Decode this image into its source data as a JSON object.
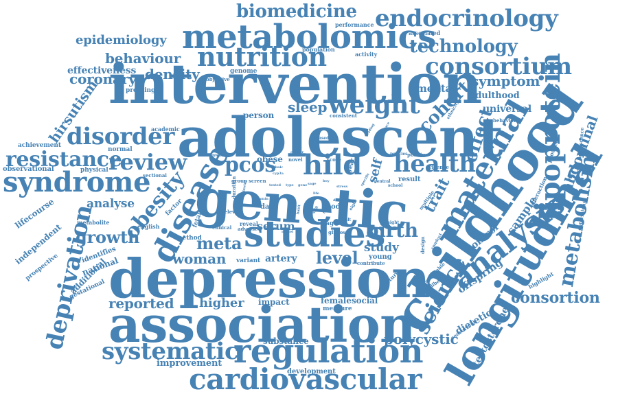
{
  "color": "#4682b4",
  "words": [
    {
      "text": "genetic",
      "weight": 100
    },
    {
      "text": "adolescent",
      "weight": 95
    },
    {
      "text": "intervention",
      "weight": 93
    },
    {
      "text": "childhood",
      "weight": 90
    },
    {
      "text": "depression",
      "weight": 92
    },
    {
      "text": "association",
      "weight": 88
    },
    {
      "text": "longitudinal",
      "weight": 75
    },
    {
      "text": "metabolomics",
      "weight": 62
    },
    {
      "text": "studies",
      "weight": 60
    },
    {
      "text": "regulation",
      "weight": 56
    },
    {
      "text": "cardiovascular",
      "weight": 52
    },
    {
      "text": "disease",
      "weight": 58
    },
    {
      "text": "analysis",
      "weight": 54
    },
    {
      "text": "maternal",
      "weight": 55
    },
    {
      "text": "lipoprotein",
      "weight": 50
    },
    {
      "text": "syndrome",
      "weight": 50
    },
    {
      "text": "endocrinology",
      "weight": 45
    },
    {
      "text": "nutrition",
      "weight": 45
    },
    {
      "text": "consortium",
      "weight": 42
    },
    {
      "text": "weight",
      "weight": 42
    },
    {
      "text": "disorder",
      "weight": 40
    },
    {
      "text": "deprivation",
      "weight": 38
    },
    {
      "text": "systematic",
      "weight": 38
    },
    {
      "text": "health",
      "weight": 38
    },
    {
      "text": "science",
      "weight": 36
    },
    {
      "text": "hild",
      "weight": 40
    },
    {
      "text": "resistance",
      "weight": 34
    },
    {
      "text": "review",
      "weight": 34
    },
    {
      "text": "obesity",
      "weight": 34
    },
    {
      "text": "metabolism",
      "weight": 32
    },
    {
      "text": "technology",
      "weight": 28
    },
    {
      "text": "biomedicine",
      "weight": 28
    },
    {
      "text": "effect",
      "weight": 30
    },
    {
      "text": "cohort",
      "weight": 28
    },
    {
      "text": "birth",
      "weight": 28
    },
    {
      "text": "pcos",
      "weight": 30
    },
    {
      "text": "growth",
      "weight": 24
    },
    {
      "text": "meta",
      "weight": 24
    },
    {
      "text": "level",
      "weight": 24
    },
    {
      "text": "woman",
      "weight": 22
    },
    {
      "text": "consortion",
      "weight": 22
    },
    {
      "text": "polycystic",
      "weight": 20
    },
    {
      "text": "reported",
      "weight": 20
    },
    {
      "text": "higher",
      "weight": 20
    },
    {
      "text": "trait",
      "weight": 22
    },
    {
      "text": "abdominal",
      "weight": 20
    },
    {
      "text": "sleep",
      "weight": 20
    },
    {
      "text": "coronary",
      "weight": 20
    },
    {
      "text": "density",
      "weight": 20
    },
    {
      "text": "behaviour",
      "weight": 20
    },
    {
      "text": "symptom",
      "weight": 20
    },
    {
      "text": "hirsutism",
      "weight": 20
    },
    {
      "text": "epidemiology",
      "weight": 18
    },
    {
      "text": "effectiveness",
      "weight": 16
    },
    {
      "text": "analyse",
      "weight": 18
    },
    {
      "text": "sample",
      "weight": 18
    },
    {
      "text": "study",
      "weight": 18
    },
    {
      "text": "testosterone",
      "weight": 16
    },
    {
      "text": "offspring",
      "weight": 16
    },
    {
      "text": "dietetic",
      "weight": 16
    },
    {
      "text": "control",
      "weight": 16
    },
    {
      "text": "serum",
      "weight": 16
    },
    {
      "text": "artery",
      "weight": 14
    },
    {
      "text": "mental",
      "weight": 16
    },
    {
      "text": "adulthood",
      "weight": 14
    },
    {
      "text": "universal",
      "weight": 14
    },
    {
      "text": "self",
      "weight": 18
    },
    {
      "text": "improvement",
      "weight": 14
    },
    {
      "text": "substance",
      "weight": 12
    },
    {
      "text": "development",
      "weight": 11
    },
    {
      "text": "impact",
      "weight": 12
    },
    {
      "text": "female",
      "weight": 12
    },
    {
      "text": "social",
      "weight": 12
    },
    {
      "text": "measure",
      "weight": 10
    },
    {
      "text": "obese",
      "weight": 12
    },
    {
      "text": "person",
      "weight": 12
    },
    {
      "text": "lifecourse",
      "weight": 12
    },
    {
      "text": "independent",
      "weight": 12
    },
    {
      "text": "national",
      "weight": 12
    },
    {
      "text": "additional",
      "weight": 12
    },
    {
      "text": "identifies",
      "weight": 10
    },
    {
      "text": "prospective",
      "weight": 10
    },
    {
      "text": "gestational",
      "weight": 9
    },
    {
      "text": "observational",
      "weight": 10
    },
    {
      "text": "achievement",
      "weight": 9
    },
    {
      "text": "physical",
      "weight": 9
    },
    {
      "text": "normal",
      "weight": 9
    },
    {
      "text": "profiling",
      "weight": 9
    },
    {
      "text": "academic",
      "weight": 8
    },
    {
      "text": "metabolite",
      "weight": 8
    },
    {
      "text": "english",
      "weight": 8
    },
    {
      "text": "factor",
      "weight": 9
    },
    {
      "text": "fetal",
      "weight": 9
    },
    {
      "text": "method",
      "weight": 9
    },
    {
      "text": "genome",
      "weight": 9
    },
    {
      "text": "objective",
      "weight": 8
    },
    {
      "text": "population",
      "weight": 8
    },
    {
      "text": "performance",
      "weight": 8
    },
    {
      "text": "associated",
      "weight": 8
    },
    {
      "text": "activity",
      "weight": 8
    },
    {
      "text": "data",
      "weight": 10
    },
    {
      "text": "case",
      "weight": 10
    },
    {
      "text": "odd",
      "weight": 10
    },
    {
      "text": "aged",
      "weight": 9
    },
    {
      "text": "young",
      "weight": 10
    },
    {
      "text": "result",
      "weight": 10
    },
    {
      "text": "variant",
      "weight": 9
    },
    {
      "text": "reveal",
      "weight": 8
    },
    {
      "text": "adverse",
      "weight": 7
    },
    {
      "text": "relevant",
      "weight": 7
    },
    {
      "text": "clinical",
      "weight": 7
    },
    {
      "text": "duration",
      "weight": 7
    },
    {
      "text": "novel",
      "weight": 7
    },
    {
      "text": "score",
      "weight": 7
    },
    {
      "text": "group",
      "weight": 7
    },
    {
      "text": "screen",
      "weight": 7
    },
    {
      "text": "year",
      "weight": 9
    },
    {
      "text": "consistent",
      "weight": 7
    },
    {
      "text": "ethnicity",
      "weight": 6
    },
    {
      "text": "behavioral",
      "weight": 7
    },
    {
      "text": "evidence",
      "weight": 7
    },
    {
      "text": "positive",
      "weight": 7
    },
    {
      "text": "policies",
      "weight": 6
    },
    {
      "text": "central",
      "weight": 6
    },
    {
      "text": "school",
      "weight": 6
    },
    {
      "text": "interaction",
      "weight": 8
    },
    {
      "text": "prospect",
      "weight": 8
    },
    {
      "text": "adolescence",
      "weight": 7
    },
    {
      "text": "determinant",
      "weight": 7
    },
    {
      "text": "highlight",
      "weight": 8
    },
    {
      "text": "concurrent",
      "weight": 7
    },
    {
      "text": "wellbeing",
      "weight": 7
    },
    {
      "text": "modifiable",
      "weight": 7
    },
    {
      "text": "future",
      "weight": 8
    },
    {
      "text": "contribute",
      "weight": 7
    },
    {
      "text": "design",
      "weight": 7
    },
    {
      "text": "conduct",
      "weight": 6
    },
    {
      "text": "insight",
      "weight": 6
    },
    {
      "text": "multiple",
      "weight": 7
    },
    {
      "text": "glucose",
      "weight": 7
    },
    {
      "text": "adult",
      "weight": 6
    },
    {
      "text": "based",
      "weight": 6
    },
    {
      "text": "sectional",
      "weight": 7
    },
    {
      "text": "wenwbs",
      "weight": 6
    },
    {
      "text": "cluster",
      "weight": 5
    },
    {
      "text": "reading",
      "weight": 5
    },
    {
      "text": "embrace",
      "weight": 5
    },
    {
      "text": "people",
      "weight": 5
    },
    {
      "text": "specific",
      "weight": 5
    },
    {
      "text": "eight",
      "weight": 6
    },
    {
      "text": "total",
      "weight": 5
    },
    {
      "text": "skill",
      "weight": 5
    },
    {
      "text": "model",
      "weight": 5
    },
    {
      "text": "stress",
      "weight": 5
    },
    {
      "text": "habit",
      "weight": 5
    },
    {
      "text": "ethnic",
      "weight": 5
    },
    {
      "text": "cyp3a",
      "weight": 5
    },
    {
      "text": "tested",
      "weight": 5
    },
    {
      "text": "sage",
      "weight": 5
    },
    {
      "text": "boy",
      "weight": 5
    },
    {
      "text": "vitamin",
      "weight": 5
    },
    {
      "text": "pubertal",
      "weight": 5
    },
    {
      "text": "type",
      "weight": 5
    },
    {
      "text": "gene",
      "weight": 5
    },
    {
      "text": "diet",
      "weight": 5
    },
    {
      "text": "risk",
      "weight": 5
    },
    {
      "text": "life",
      "weight": 5
    }
  ]
}
